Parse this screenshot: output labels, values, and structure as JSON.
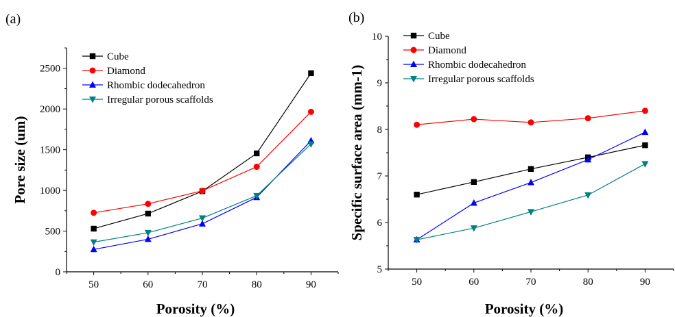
{
  "chart_data": [
    {
      "panel_label": "(a)",
      "type": "line",
      "xlabel": "Porosity (%)",
      "ylabel": "Pore size (um)",
      "x": [
        50,
        60,
        70,
        80,
        90
      ],
      "xlim": [
        45,
        95
      ],
      "ylim": [
        0,
        2750
      ],
      "x_ticks": [
        "50",
        "60",
        "70",
        "80",
        "90"
      ],
      "y_ticks": [
        "0",
        "500",
        "1000",
        "1500",
        "2000",
        "2500"
      ],
      "legend_position": "top-left",
      "grid": false,
      "series": [
        {
          "name": "Cube",
          "color": "#000000",
          "marker": "square",
          "values": [
            530,
            715,
            990,
            1455,
            2440
          ]
        },
        {
          "name": "Diamond",
          "color": "#ff0000",
          "marker": "circle",
          "values": [
            725,
            835,
            995,
            1290,
            1965
          ]
        },
        {
          "name": "Rhombic dodecahedron",
          "color": "#0000ff",
          "marker": "triangle-up",
          "values": [
            275,
            400,
            590,
            915,
            1610
          ]
        },
        {
          "name": "Irregular porous scaffolds",
          "color": "#008080",
          "marker": "triangle-down",
          "values": [
            365,
            480,
            660,
            935,
            1570
          ]
        }
      ]
    },
    {
      "panel_label": "(b)",
      "type": "line",
      "xlabel": "Porosity (%)",
      "ylabel": "Specific surface area (mm-1)",
      "x": [
        50,
        60,
        70,
        80,
        90
      ],
      "xlim": [
        45,
        95
      ],
      "ylim": [
        5,
        10
      ],
      "x_ticks": [
        "50",
        "60",
        "70",
        "80",
        "90"
      ],
      "y_ticks": [
        "5",
        "6",
        "7",
        "8",
        "9",
        "10"
      ],
      "legend_position": "top-left",
      "grid": false,
      "series": [
        {
          "name": "Cube",
          "color": "#000000",
          "marker": "square",
          "values": [
            6.6,
            6.87,
            7.15,
            7.4,
            7.66
          ]
        },
        {
          "name": "Diamond",
          "color": "#ff0000",
          "marker": "circle",
          "values": [
            8.1,
            8.22,
            8.15,
            8.24,
            8.4
          ]
        },
        {
          "name": "Rhombic dodecahedron",
          "color": "#0000ff",
          "marker": "triangle-up",
          "values": [
            5.63,
            6.42,
            6.86,
            7.35,
            7.94
          ]
        },
        {
          "name": "Irregular porous scaffolds",
          "color": "#008080",
          "marker": "triangle-down",
          "values": [
            5.63,
            5.88,
            6.23,
            6.59,
            7.26
          ]
        }
      ]
    }
  ]
}
